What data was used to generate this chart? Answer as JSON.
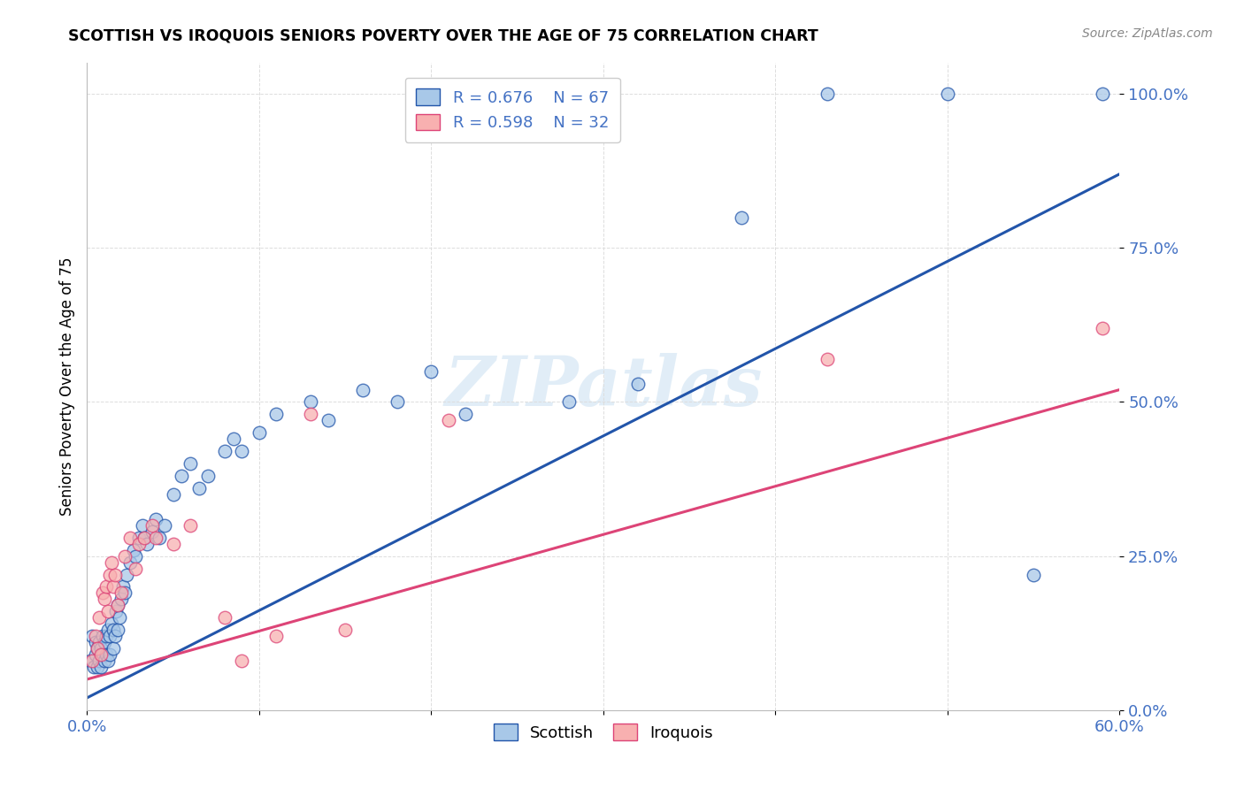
{
  "title": "SCOTTISH VS IROQUOIS SENIORS POVERTY OVER THE AGE OF 75 CORRELATION CHART",
  "source": "Source: ZipAtlas.com",
  "ylabel": "Seniors Poverty Over the Age of 75",
  "xlim": [
    0.0,
    0.6
  ],
  "ylim": [
    0.0,
    1.05
  ],
  "yticks": [
    0.0,
    0.25,
    0.5,
    0.75,
    1.0
  ],
  "ytick_labels": [
    "0.0%",
    "25.0%",
    "50.0%",
    "75.0%",
    "100.0%"
  ],
  "xticks": [
    0.0,
    0.1,
    0.2,
    0.3,
    0.4,
    0.5,
    0.6
  ],
  "xtick_labels": [
    "0.0%",
    "",
    "",
    "",
    "",
    "",
    "60.0%"
  ],
  "scottish_R": 0.676,
  "scottish_N": 67,
  "iroquois_R": 0.598,
  "iroquois_N": 32,
  "scottish_color": "#a8c8e8",
  "iroquois_color": "#f8b0b0",
  "trend_scottish_color": "#2255aa",
  "trend_iroquois_color": "#dd4477",
  "watermark": "ZIPatlas",
  "background_color": "#ffffff",
  "grid_color": "#dddddd",
  "axis_label_color": "#4472c4",
  "scottish_trend_x0": 0.0,
  "scottish_trend_y0": 0.02,
  "scottish_trend_x1": 0.6,
  "scottish_trend_y1": 0.87,
  "iroquois_trend_x0": 0.0,
  "iroquois_trend_y0": 0.05,
  "iroquois_trend_x1": 0.6,
  "iroquois_trend_y1": 0.52,
  "scottish_x": [
    0.002,
    0.003,
    0.004,
    0.005,
    0.005,
    0.006,
    0.006,
    0.007,
    0.007,
    0.008,
    0.008,
    0.009,
    0.009,
    0.01,
    0.01,
    0.011,
    0.011,
    0.012,
    0.012,
    0.013,
    0.013,
    0.014,
    0.015,
    0.015,
    0.016,
    0.017,
    0.018,
    0.018,
    0.019,
    0.02,
    0.021,
    0.022,
    0.023,
    0.025,
    0.027,
    0.028,
    0.03,
    0.032,
    0.033,
    0.035,
    0.038,
    0.04,
    0.042,
    0.045,
    0.05,
    0.055,
    0.06,
    0.065,
    0.07,
    0.08,
    0.085,
    0.09,
    0.1,
    0.11,
    0.13,
    0.14,
    0.16,
    0.18,
    0.2,
    0.22,
    0.28,
    0.32,
    0.38,
    0.43,
    0.5,
    0.55,
    0.59
  ],
  "scottish_y": [
    0.08,
    0.12,
    0.07,
    0.09,
    0.11,
    0.07,
    0.1,
    0.08,
    0.11,
    0.07,
    0.1,
    0.09,
    0.12,
    0.08,
    0.11,
    0.09,
    0.12,
    0.08,
    0.13,
    0.09,
    0.12,
    0.14,
    0.1,
    0.13,
    0.12,
    0.16,
    0.13,
    0.17,
    0.15,
    0.18,
    0.2,
    0.19,
    0.22,
    0.24,
    0.26,
    0.25,
    0.28,
    0.3,
    0.28,
    0.27,
    0.29,
    0.31,
    0.28,
    0.3,
    0.35,
    0.38,
    0.4,
    0.36,
    0.38,
    0.42,
    0.44,
    0.42,
    0.45,
    0.48,
    0.5,
    0.47,
    0.52,
    0.5,
    0.55,
    0.48,
    0.5,
    0.53,
    0.8,
    1.0,
    1.0,
    0.22,
    1.0
  ],
  "iroquois_x": [
    0.003,
    0.005,
    0.006,
    0.007,
    0.008,
    0.009,
    0.01,
    0.011,
    0.012,
    0.013,
    0.014,
    0.015,
    0.016,
    0.018,
    0.02,
    0.022,
    0.025,
    0.028,
    0.03,
    0.033,
    0.038,
    0.04,
    0.05,
    0.06,
    0.08,
    0.09,
    0.11,
    0.13,
    0.15,
    0.21,
    0.43,
    0.59
  ],
  "iroquois_y": [
    0.08,
    0.12,
    0.1,
    0.15,
    0.09,
    0.19,
    0.18,
    0.2,
    0.16,
    0.22,
    0.24,
    0.2,
    0.22,
    0.17,
    0.19,
    0.25,
    0.28,
    0.23,
    0.27,
    0.28,
    0.3,
    0.28,
    0.27,
    0.3,
    0.15,
    0.08,
    0.12,
    0.48,
    0.13,
    0.47,
    0.57,
    0.62
  ]
}
